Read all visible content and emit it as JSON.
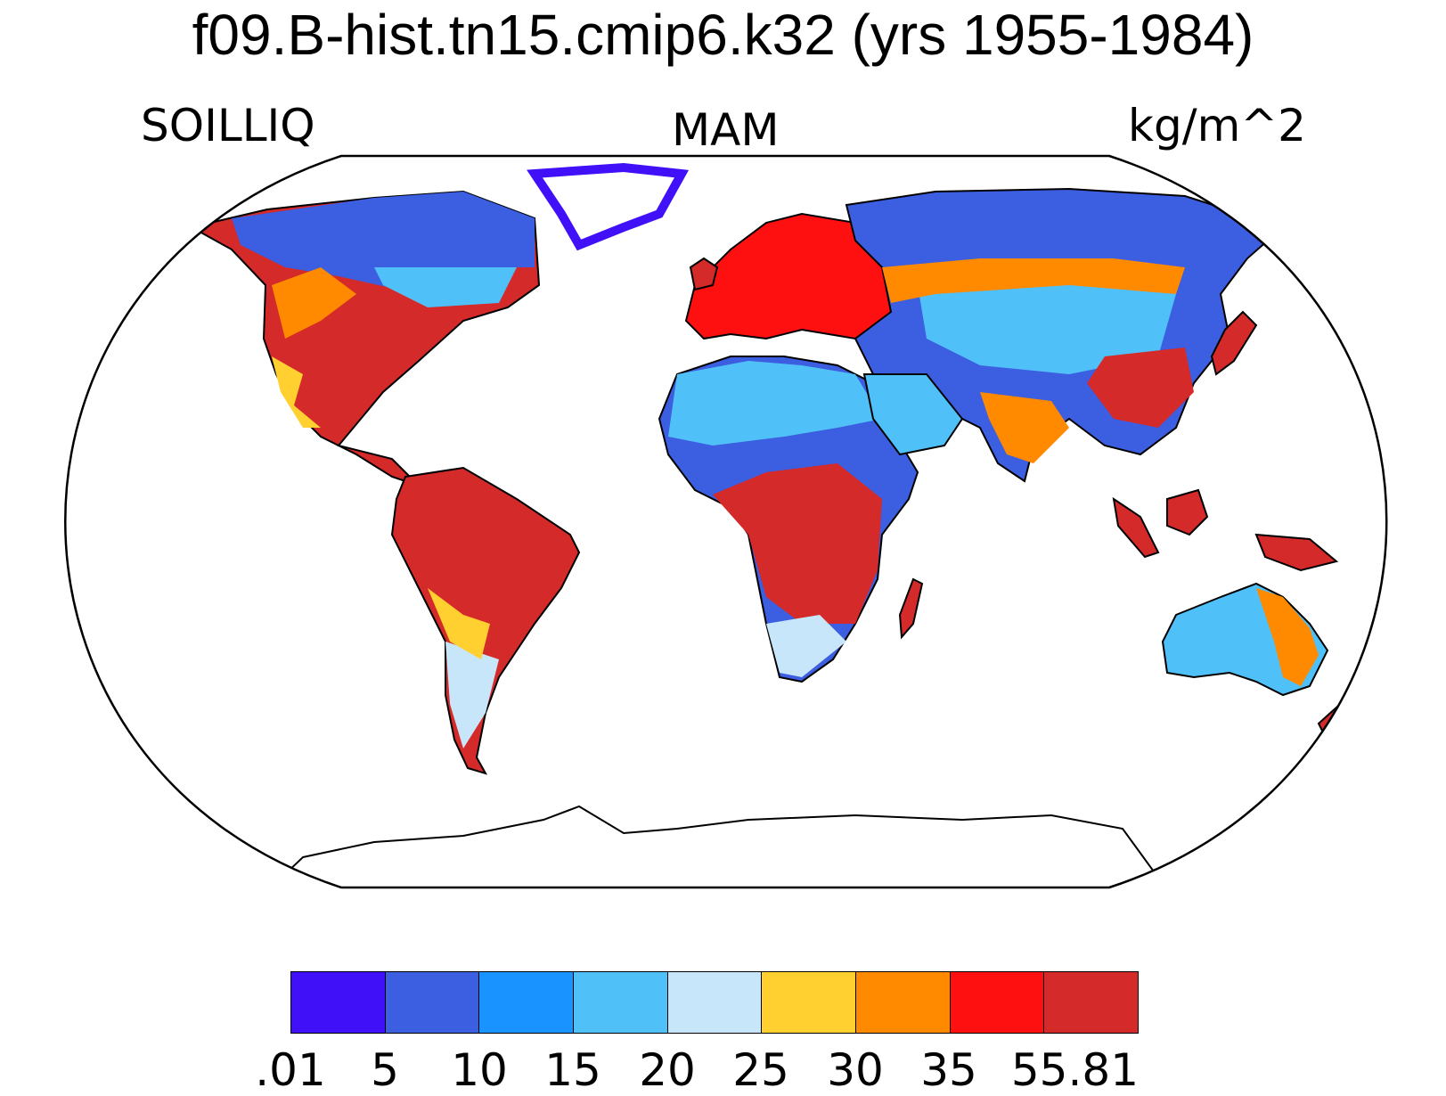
{
  "title": "f09.B-hist.tn15.cmip6.k32 (yrs 1955-1984)",
  "variable": "SOILLIQ",
  "season": "MAM",
  "units": "kg/m^2",
  "colorbar": {
    "labels": [
      ".01",
      "5",
      "10",
      "15",
      "20",
      "25",
      "30",
      "35",
      "55.81"
    ],
    "colors": [
      "#4010f8",
      "#3c5ee0",
      "#1893ff",
      "#50c0f8",
      "#c8e6fa",
      "#ffd030",
      "#ff8a00",
      "#ff1010",
      "#d42a2a"
    ]
  },
  "map": {
    "projection": "Robinson",
    "coastline_color": "#000000",
    "ocean_color": "#ffffff"
  }
}
